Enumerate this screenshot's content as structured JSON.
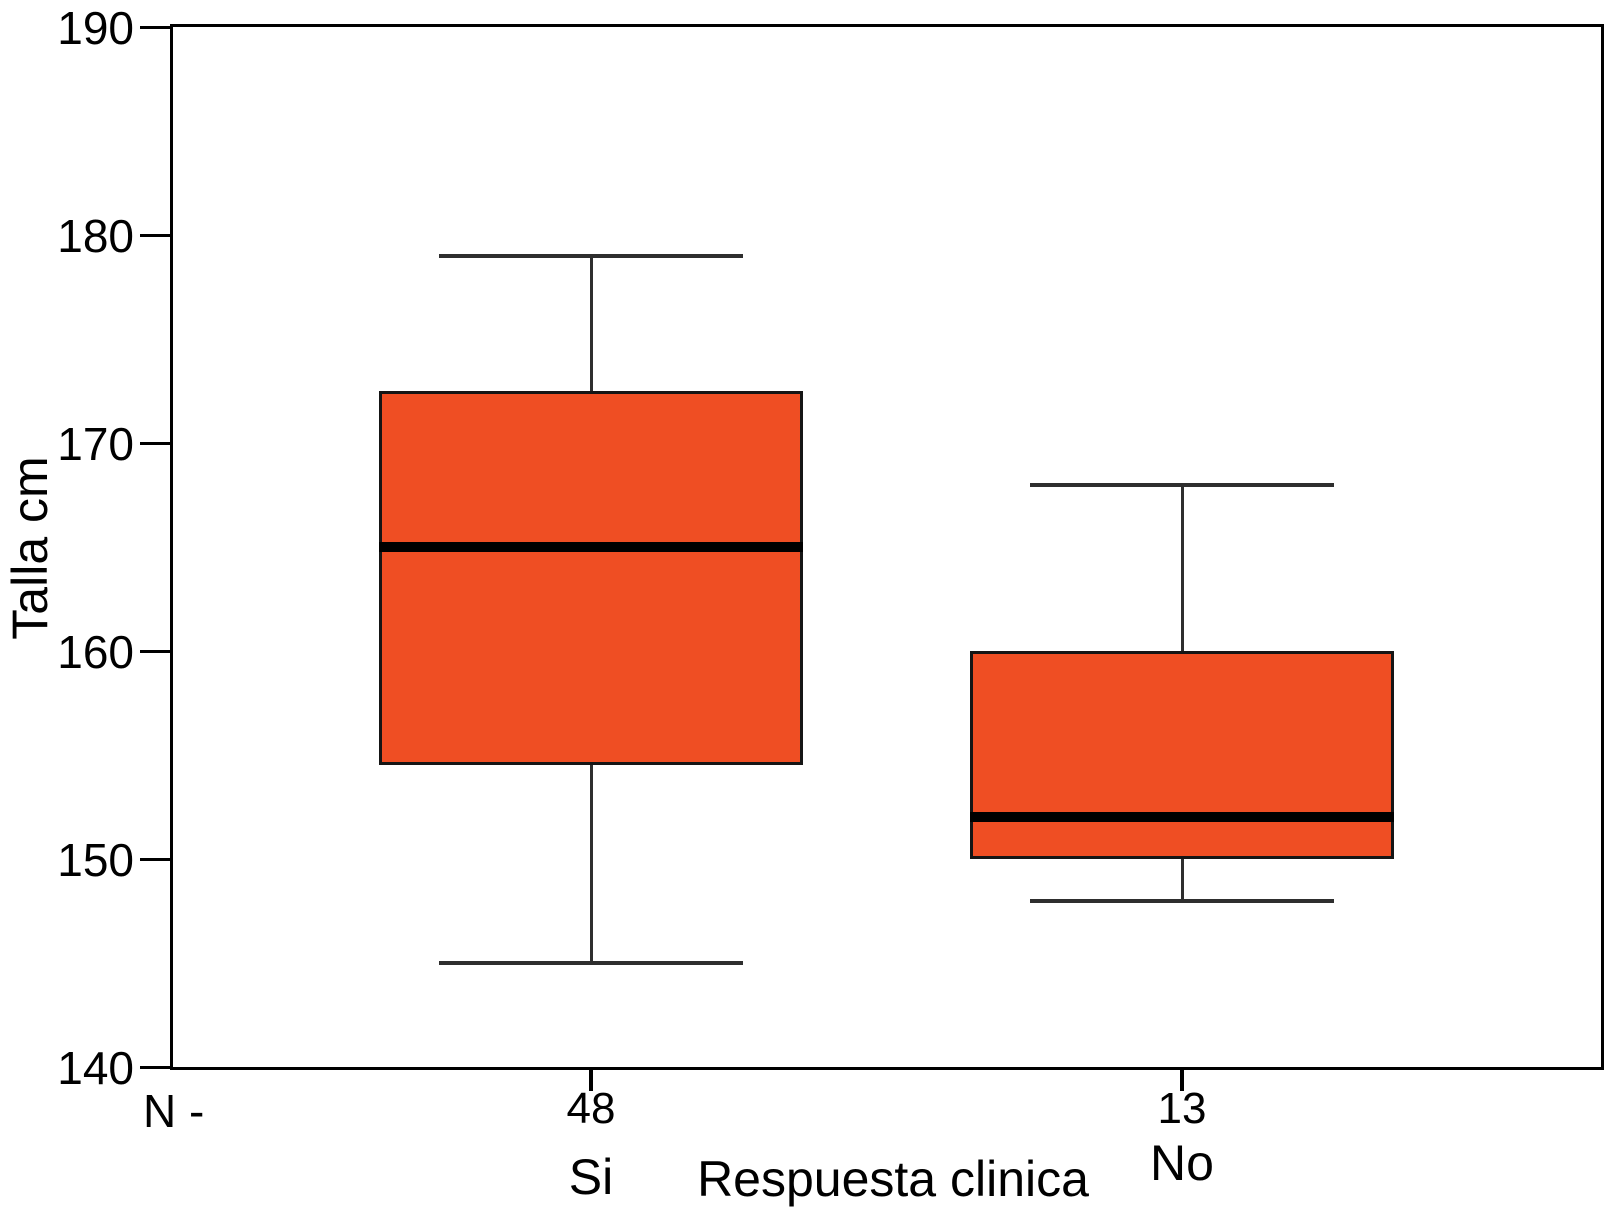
{
  "chart_data": {
    "type": "boxplot",
    "title": "",
    "ylabel": "Talla cm",
    "xlabel": "Respuesta clinica",
    "n_prefix": "N -",
    "ylim": [
      140,
      190
    ],
    "yticks": [
      "140",
      "150",
      "160",
      "170",
      "180",
      "190"
    ],
    "grid": false,
    "legend": "none",
    "groups": [
      {
        "label": "Si",
        "n": "48",
        "whisker_low": 145,
        "q1": 154.5,
        "median": 165,
        "q3": 172.5,
        "whisker_high": 179
      },
      {
        "label": "No",
        "n": "13",
        "whisker_low": 148,
        "q1": 150,
        "median": 152,
        "q3": 160,
        "whisker_high": 168
      }
    ],
    "colors": {
      "box_fill": "#EF4E23",
      "box_border": "#151515",
      "median": "#000000",
      "whisker": "#2e2e2e",
      "axis": "#000000",
      "text": "#000000",
      "background": "#ffffff"
    }
  }
}
